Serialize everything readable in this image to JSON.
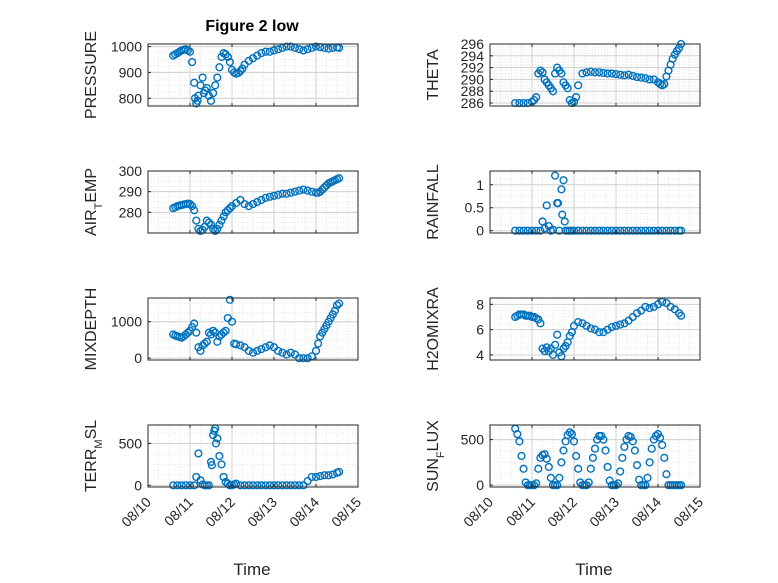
{
  "figure": {
    "title": "Figure 2 low",
    "x_ticklabels": [
      "08/10",
      "08/11",
      "08/12",
      "08/13",
      "08/14",
      "08/15"
    ],
    "xlabel": "Time"
  },
  "colors": {
    "marker": "#0072BD",
    "axis": "#262626",
    "grid": "#d0d0d0",
    "minor_grid": "#e6e6e6"
  },
  "chart_data": [
    {
      "type": "scatter",
      "title": "Figure 2 low",
      "ylabel": "PRESSURE",
      "xlim": [
        0,
        5
      ],
      "ylim": [
        770,
        1010
      ],
      "yticks": [
        800,
        900,
        1000
      ],
      "x": [
        0.6,
        0.65,
        0.7,
        0.75,
        0.8,
        0.85,
        0.9,
        0.95,
        1.0,
        1.05,
        1.1,
        1.12,
        1.15,
        1.18,
        1.2,
        1.25,
        1.3,
        1.33,
        1.36,
        1.4,
        1.45,
        1.5,
        1.55,
        1.6,
        1.65,
        1.7,
        1.75,
        1.8,
        1.85,
        1.9,
        1.95,
        2.0,
        2.05,
        2.1,
        2.15,
        2.2,
        2.25,
        2.3,
        2.4,
        2.5,
        2.6,
        2.7,
        2.8,
        2.9,
        3.0,
        3.1,
        3.2,
        3.3,
        3.4,
        3.5,
        3.6,
        3.7,
        3.8,
        3.9,
        4.0,
        4.1,
        4.2,
        4.3,
        4.4,
        4.5,
        4.55
      ],
      "y": [
        965,
        970,
        975,
        980,
        985,
        988,
        990,
        985,
        980,
        940,
        860,
        800,
        780,
        790,
        810,
        850,
        880,
        820,
        830,
        840,
        810,
        790,
        820,
        850,
        880,
        920,
        960,
        975,
        970,
        960,
        940,
        910,
        900,
        895,
        898,
        905,
        915,
        930,
        945,
        955,
        965,
        975,
        980,
        980,
        985,
        990,
        995,
        1000,
        1000,
        995,
        990,
        985,
        990,
        995,
        1000,
        998,
        995,
        992,
        995,
        997,
        995
      ],
      "color": "#0072BD"
    },
    {
      "type": "scatter",
      "ylabel": "THETA",
      "xlim": [
        0,
        5
      ],
      "ylim": [
        285.5,
        296
      ],
      "yticks": [
        286,
        288,
        290,
        292,
        294,
        296
      ],
      "x": [
        0.6,
        0.7,
        0.8,
        0.9,
        1.0,
        1.05,
        1.1,
        1.15,
        1.2,
        1.25,
        1.3,
        1.35,
        1.4,
        1.45,
        1.5,
        1.55,
        1.6,
        1.65,
        1.7,
        1.75,
        1.8,
        1.85,
        1.9,
        1.95,
        2.0,
        2.05,
        2.1,
        2.2,
        2.3,
        2.4,
        2.5,
        2.6,
        2.7,
        2.8,
        2.9,
        3.0,
        3.1,
        3.2,
        3.3,
        3.4,
        3.5,
        3.6,
        3.7,
        3.8,
        3.9,
        4.0,
        4.05,
        4.1,
        4.15,
        4.2,
        4.25,
        4.3,
        4.35,
        4.4,
        4.45,
        4.5,
        4.55
      ],
      "y": [
        286,
        286,
        286,
        286,
        286.2,
        286.5,
        287,
        291,
        291.5,
        291.2,
        290,
        289.5,
        289,
        288.5,
        288,
        291,
        292,
        291.5,
        291,
        289.5,
        289,
        288.5,
        286.5,
        286,
        286.2,
        287,
        289,
        291,
        291.2,
        291.3,
        291.2,
        291.2,
        291.1,
        291,
        291,
        290.9,
        290.8,
        290.7,
        290.8,
        290.6,
        290.4,
        290.3,
        290.2,
        290,
        290,
        289.5,
        289.2,
        289,
        289.2,
        290.5,
        291.5,
        292.5,
        293.5,
        294.2,
        294.8,
        295.3,
        296
      ],
      "color": "#0072BD"
    },
    {
      "type": "scatter",
      "ylabel": "AIR_TEMP",
      "xlim": [
        0,
        5
      ],
      "ylim": [
        270,
        300
      ],
      "yticks": [
        280,
        290,
        300
      ],
      "x": [
        0.6,
        0.65,
        0.7,
        0.75,
        0.8,
        0.85,
        0.9,
        0.95,
        1.0,
        1.05,
        1.1,
        1.15,
        1.2,
        1.25,
        1.3,
        1.35,
        1.4,
        1.45,
        1.5,
        1.55,
        1.6,
        1.65,
        1.7,
        1.75,
        1.8,
        1.85,
        1.9,
        1.95,
        2.0,
        2.1,
        2.2,
        2.3,
        2.4,
        2.5,
        2.6,
        2.7,
        2.8,
        2.9,
        3.0,
        3.1,
        3.2,
        3.3,
        3.4,
        3.5,
        3.6,
        3.7,
        3.8,
        3.9,
        4.0,
        4.05,
        4.1,
        4.15,
        4.2,
        4.25,
        4.3,
        4.35,
        4.4,
        4.45,
        4.5,
        4.55
      ],
      "y": [
        282,
        282.5,
        283,
        283.3,
        283.5,
        283.8,
        284,
        284.2,
        284,
        283,
        281,
        276,
        272,
        271,
        271.5,
        273,
        276,
        275,
        274,
        272,
        271,
        272,
        274,
        276,
        278,
        280,
        281,
        282,
        283,
        284.5,
        286,
        284,
        283,
        284,
        285,
        286,
        287,
        287.5,
        288,
        288.5,
        289,
        289,
        289.5,
        290,
        290.5,
        291,
        290.5,
        290,
        289.5,
        289.5,
        290,
        291,
        292,
        293,
        294,
        294.5,
        295,
        295.5,
        296,
        296.5
      ],
      "color": "#0072BD"
    },
    {
      "type": "scatter",
      "ylabel": "RAINFALL",
      "xlim": [
        0,
        5
      ],
      "ylim": [
        -0.05,
        1.3
      ],
      "yticks": [
        0,
        0.5,
        1
      ],
      "x": [
        0.6,
        0.7,
        0.8,
        0.9,
        1.0,
        1.1,
        1.2,
        1.25,
        1.3,
        1.35,
        1.4,
        1.45,
        1.5,
        1.55,
        1.6,
        1.62,
        1.65,
        1.7,
        1.72,
        1.75,
        1.78,
        1.8,
        1.85,
        1.9,
        1.95,
        2.0,
        2.1,
        2.2,
        2.3,
        2.4,
        2.5,
        2.6,
        2.7,
        2.8,
        2.9,
        3.0,
        3.1,
        3.2,
        3.3,
        3.4,
        3.5,
        3.6,
        3.7,
        3.8,
        3.9,
        4.0,
        4.1,
        4.2,
        4.3,
        4.4,
        4.5,
        4.55
      ],
      "y": [
        0,
        0,
        0,
        0,
        0,
        0,
        0,
        0.2,
        0.05,
        0.55,
        0.1,
        0,
        0.02,
        1.2,
        0.6,
        0.6,
        0,
        0.9,
        0.35,
        1.1,
        0.2,
        0,
        0,
        0,
        0,
        0,
        0,
        0,
        0,
        0,
        0,
        0,
        0,
        0,
        0,
        0,
        0,
        0,
        0,
        0,
        0,
        0,
        0,
        0,
        0,
        0,
        0,
        0,
        0,
        0,
        0,
        0
      ],
      "color": "#0072BD"
    },
    {
      "type": "scatter",
      "ylabel": "MIXDEPTH",
      "xlim": [
        0,
        5
      ],
      "ylim": [
        -50,
        1650
      ],
      "yticks": [
        0,
        1000
      ],
      "x": [
        0.6,
        0.65,
        0.7,
        0.75,
        0.8,
        0.85,
        0.9,
        0.95,
        1.0,
        1.05,
        1.1,
        1.15,
        1.2,
        1.25,
        1.3,
        1.35,
        1.4,
        1.45,
        1.5,
        1.55,
        1.6,
        1.65,
        1.7,
        1.75,
        1.8,
        1.85,
        1.9,
        1.95,
        2.0,
        2.05,
        2.1,
        2.2,
        2.3,
        2.4,
        2.5,
        2.6,
        2.7,
        2.8,
        2.9,
        3.0,
        3.1,
        3.2,
        3.3,
        3.4,
        3.5,
        3.6,
        3.7,
        3.8,
        3.9,
        4.0,
        4.05,
        4.1,
        4.15,
        4.2,
        4.25,
        4.3,
        4.35,
        4.4,
        4.45,
        4.5,
        4.55
      ],
      "y": [
        650,
        620,
        600,
        580,
        560,
        600,
        650,
        700,
        750,
        850,
        950,
        700,
        300,
        200,
        350,
        400,
        450,
        700,
        650,
        750,
        700,
        450,
        600,
        650,
        700,
        750,
        1100,
        1600,
        1000,
        400,
        380,
        350,
        300,
        200,
        150,
        200,
        250,
        300,
        350,
        300,
        200,
        150,
        100,
        150,
        100,
        0,
        0,
        0,
        50,
        200,
        400,
        600,
        700,
        800,
        900,
        1000,
        1100,
        1200,
        1300,
        1450,
        1500
      ],
      "color": "#0072BD"
    },
    {
      "type": "scatter",
      "ylabel": "H2OMIXRA",
      "xlim": [
        0,
        5
      ],
      "ylim": [
        3.6,
        8.5
      ],
      "yticks": [
        4,
        6,
        8
      ],
      "x": [
        0.6,
        0.65,
        0.7,
        0.75,
        0.8,
        0.85,
        0.9,
        0.95,
        1.0,
        1.05,
        1.1,
        1.15,
        1.2,
        1.25,
        1.3,
        1.35,
        1.4,
        1.45,
        1.5,
        1.55,
        1.6,
        1.65,
        1.7,
        1.75,
        1.8,
        1.85,
        1.9,
        1.95,
        2.0,
        2.1,
        2.2,
        2.3,
        2.4,
        2.5,
        2.6,
        2.7,
        2.8,
        2.9,
        3.0,
        3.1,
        3.2,
        3.3,
        3.4,
        3.5,
        3.6,
        3.7,
        3.8,
        3.9,
        4.0,
        4.1,
        4.2,
        4.3,
        4.4,
        4.5,
        4.55
      ],
      "y": [
        7,
        7.1,
        7.2,
        7.2,
        7.2,
        7.1,
        7.1,
        7.1,
        7.0,
        7.0,
        6.9,
        6.8,
        6.5,
        4.5,
        4.3,
        4.6,
        4.3,
        4.5,
        4.0,
        4.8,
        5.6,
        4.2,
        3.9,
        4.5,
        4.7,
        5.0,
        5.5,
        5.8,
        6.3,
        6.6,
        6.5,
        6.3,
        6.1,
        6.0,
        5.8,
        5.8,
        6.0,
        6.2,
        6.3,
        6.4,
        6.5,
        6.7,
        7.0,
        7.3,
        7.5,
        7.8,
        7.7,
        7.8,
        8.0,
        8.2,
        8.1,
        7.8,
        7.6,
        7.3,
        7.1
      ],
      "color": "#0072BD"
    },
    {
      "type": "scatter",
      "ylabel": "TERR_MSL",
      "xlim": [
        0,
        5
      ],
      "ylim": [
        -20,
        720
      ],
      "yticks": [
        0,
        500
      ],
      "x": [
        0.6,
        0.7,
        0.8,
        0.9,
        1.0,
        1.1,
        1.15,
        1.2,
        1.25,
        1.3,
        1.35,
        1.4,
        1.45,
        1.5,
        1.52,
        1.55,
        1.58,
        1.6,
        1.62,
        1.65,
        1.7,
        1.75,
        1.8,
        1.85,
        1.9,
        1.95,
        2.0,
        2.05,
        2.1,
        2.2,
        2.3,
        2.4,
        2.5,
        2.6,
        2.7,
        2.8,
        2.9,
        3.0,
        3.1,
        3.2,
        3.3,
        3.4,
        3.5,
        3.6,
        3.7,
        3.8,
        3.9,
        4.0,
        4.1,
        4.2,
        4.3,
        4.4,
        4.5,
        4.55
      ],
      "y": [
        0,
        0,
        0,
        0,
        0,
        0,
        100,
        380,
        60,
        10,
        0,
        0,
        0,
        280,
        240,
        600,
        650,
        680,
        500,
        560,
        350,
        250,
        100,
        40,
        20,
        0,
        0,
        10,
        20,
        0,
        0,
        0,
        0,
        0,
        0,
        0,
        0,
        0,
        0,
        0,
        0,
        0,
        0,
        0,
        0,
        50,
        100,
        100,
        110,
        120,
        120,
        130,
        150,
        160
      ],
      "color": "#0072BD"
    },
    {
      "type": "scatter",
      "ylabel": "SUN_FLUX",
      "xlim": [
        0,
        5
      ],
      "ylim": [
        -20,
        660
      ],
      "yticks": [
        0,
        500
      ],
      "x": [
        0.6,
        0.65,
        0.7,
        0.75,
        0.8,
        0.85,
        0.9,
        0.95,
        1.0,
        1.05,
        1.1,
        1.15,
        1.2,
        1.25,
        1.3,
        1.35,
        1.4,
        1.45,
        1.5,
        1.55,
        1.6,
        1.65,
        1.7,
        1.75,
        1.8,
        1.85,
        1.9,
        1.95,
        2.0,
        2.05,
        2.1,
        2.15,
        2.2,
        2.25,
        2.3,
        2.35,
        2.4,
        2.45,
        2.5,
        2.55,
        2.6,
        2.65,
        2.7,
        2.75,
        2.8,
        2.85,
        2.9,
        2.95,
        3.0,
        3.05,
        3.1,
        3.15,
        3.2,
        3.25,
        3.3,
        3.35,
        3.4,
        3.45,
        3.5,
        3.55,
        3.6,
        3.65,
        3.7,
        3.75,
        3.8,
        3.85,
        3.9,
        3.95,
        4.0,
        4.05,
        4.1,
        4.15,
        4.2,
        4.25,
        4.3,
        4.35,
        4.4,
        4.45,
        4.5,
        4.55
      ],
      "y": [
        620,
        560,
        480,
        320,
        180,
        30,
        0,
        0,
        0,
        0,
        20,
        180,
        300,
        330,
        340,
        290,
        200,
        80,
        0,
        0,
        0,
        80,
        250,
        380,
        480,
        550,
        580,
        560,
        480,
        320,
        180,
        30,
        0,
        0,
        0,
        30,
        180,
        300,
        400,
        500,
        540,
        540,
        500,
        380,
        200,
        50,
        0,
        0,
        0,
        20,
        150,
        300,
        420,
        500,
        540,
        530,
        480,
        380,
        220,
        60,
        0,
        0,
        0,
        80,
        250,
        400,
        500,
        540,
        560,
        520,
        440,
        300,
        120,
        0,
        0,
        0,
        0,
        0,
        0,
        0
      ],
      "color": "#0072BD"
    }
  ]
}
